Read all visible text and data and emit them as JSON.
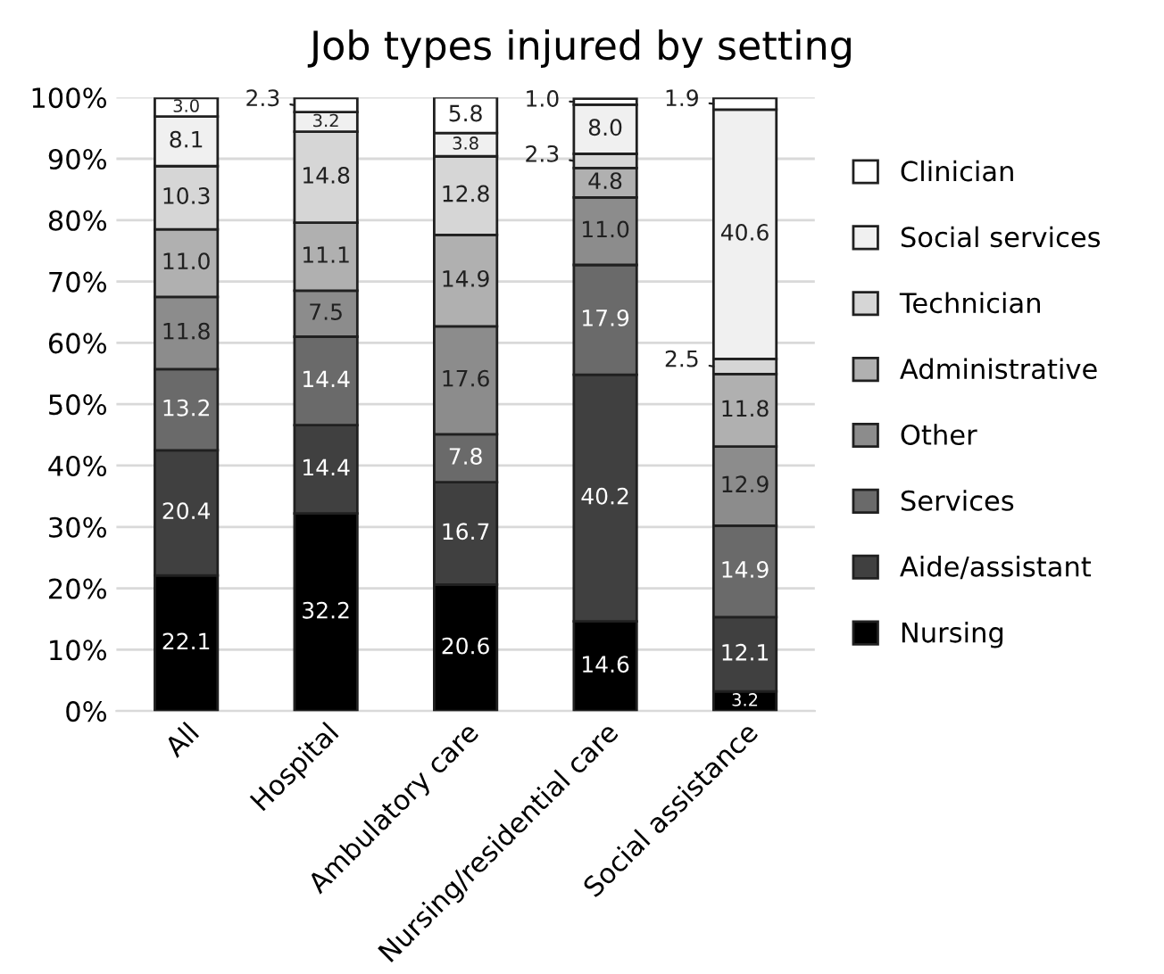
{
  "chart_data": {
    "type": "bar",
    "title": "Job types injured by setting",
    "categories": [
      "All",
      "Hospital",
      "Ambulatory care",
      "Nursing/residential care",
      "Social assistance"
    ],
    "stacked": true,
    "grid": "y",
    "legend": "right",
    "ylim": [
      0,
      100
    ],
    "yticks": [
      {
        "value": 0,
        "label": "0%"
      },
      {
        "value": 10,
        "label": "10%"
      },
      {
        "value": 20,
        "label": "20%"
      },
      {
        "value": 30,
        "label": "30%"
      },
      {
        "value": 40,
        "label": "40%"
      },
      {
        "value": 50,
        "label": "50%"
      },
      {
        "value": 60,
        "label": "60%"
      },
      {
        "value": 70,
        "label": "70%"
      },
      {
        "value": 80,
        "label": "80%"
      },
      {
        "value": 90,
        "label": "90%"
      },
      {
        "value": 100,
        "label": "100%"
      }
    ],
    "series": [
      {
        "name": "Nursing",
        "color": "#000000",
        "values": [
          22.1,
          32.2,
          20.6,
          14.6,
          3.2
        ],
        "value_labels": [
          "22.1",
          "32.2",
          "20.6",
          "14.6",
          "3.2"
        ]
      },
      {
        "name": "Aide/assistant",
        "color": "#404040",
        "values": [
          20.4,
          14.4,
          16.7,
          40.2,
          12.1
        ],
        "value_labels": [
          "20.4",
          "14.4",
          "16.7",
          "40.2",
          "12.1"
        ]
      },
      {
        "name": "Services",
        "color": "#6a6a6a",
        "values": [
          13.2,
          14.4,
          7.8,
          17.9,
          14.9
        ],
        "value_labels": [
          "13.2",
          "14.4",
          "7.8",
          "17.9",
          "14.9"
        ]
      },
      {
        "name": "Other",
        "color": "#8c8c8c",
        "values": [
          11.8,
          7.5,
          17.6,
          11.0,
          12.9
        ],
        "value_labels": [
          "11.8",
          "7.5",
          "17.6",
          "11.0",
          "12.9"
        ]
      },
      {
        "name": "Administrative",
        "color": "#b0b0b0",
        "values": [
          11.0,
          11.1,
          14.9,
          4.8,
          11.8
        ],
        "value_labels": [
          "11.0",
          "11.1",
          "14.9",
          "4.8",
          "11.8"
        ]
      },
      {
        "name": "Technician",
        "color": "#d6d6d6",
        "values": [
          10.3,
          14.8,
          12.8,
          2.3,
          2.5
        ],
        "value_labels": [
          "10.3",
          "14.8",
          "12.8",
          "2.3",
          "2.5"
        ]
      },
      {
        "name": "Social services",
        "color": "#f0f0f0",
        "values": [
          8.1,
          3.2,
          3.8,
          8.0,
          40.6
        ],
        "value_labels": [
          "8.1",
          "3.2",
          "3.8",
          "8.0",
          "40.6"
        ]
      },
      {
        "name": "Clinician",
        "color": "#ffffff",
        "values": [
          3.0,
          2.3,
          5.8,
          1.0,
          1.9
        ],
        "value_labels": [
          "3.0",
          "2.3",
          "5.8",
          "1.0",
          "1.9"
        ]
      }
    ]
  }
}
